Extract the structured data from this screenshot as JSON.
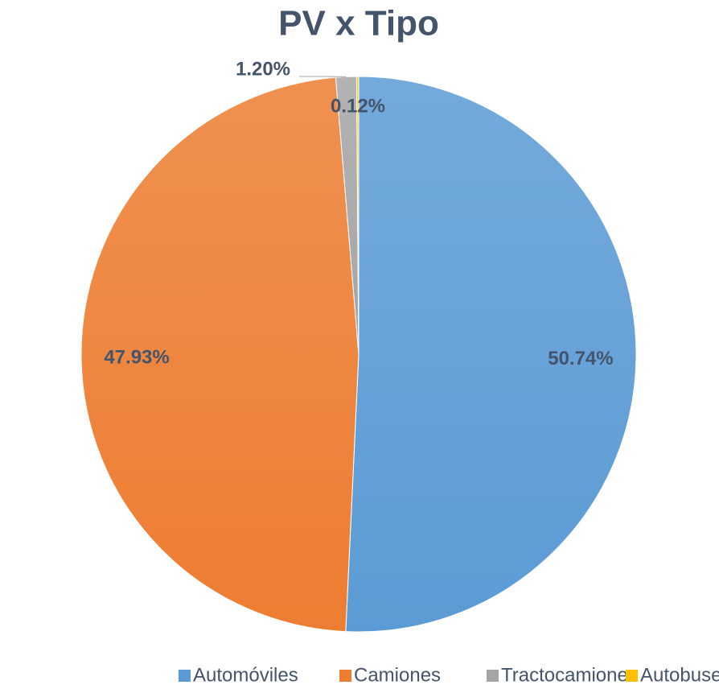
{
  "chart_data": {
    "type": "pie",
    "title": "PV x Tipo",
    "categories": [
      "Automóviles",
      "Camiones",
      "Tractocamiones",
      "Autobuses"
    ],
    "values": [
      50.74,
      47.93,
      1.2,
      0.12
    ],
    "value_labels": [
      "50.74%",
      "47.93%",
      "1.20%",
      "0.12%"
    ],
    "colors": [
      "#5b9bd5",
      "#ed7d31",
      "#a5a5a5",
      "#ffc000"
    ],
    "legend": "bottom"
  }
}
